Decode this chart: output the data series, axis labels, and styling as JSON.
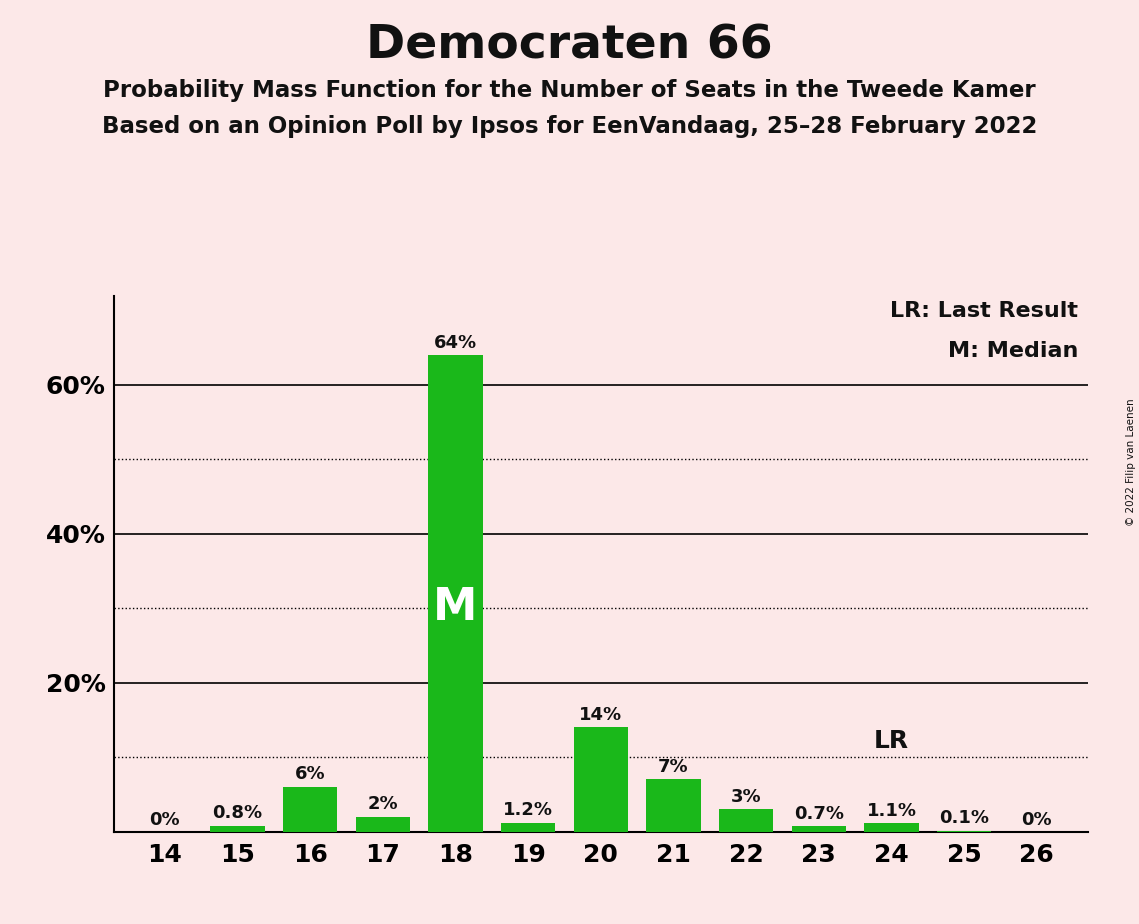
{
  "title": "Democraten 66",
  "subtitle1": "Probability Mass Function for the Number of Seats in the Tweede Kamer",
  "subtitle2": "Based on an Opinion Poll by Ipsos for EenVandaag, 25–28 February 2022",
  "copyright": "© 2022 Filip van Laenen",
  "legend_lr": "LR: Last Result",
  "legend_m": "M: Median",
  "seats": [
    14,
    15,
    16,
    17,
    18,
    19,
    20,
    21,
    22,
    23,
    24,
    25,
    26
  ],
  "probabilities": [
    0.0,
    0.8,
    6.0,
    2.0,
    64.0,
    1.2,
    14.0,
    7.0,
    3.0,
    0.7,
    1.1,
    0.1,
    0.0
  ],
  "labels": [
    "0%",
    "0.8%",
    "6%",
    "2%",
    "64%",
    "1.2%",
    "14%",
    "7%",
    "3%",
    "0.7%",
    "1.1%",
    "0.1%",
    "0%"
  ],
  "bar_color": "#1ab81a",
  "median_seat": 18,
  "lr_seat": 24,
  "background_color": "#fce8e8",
  "major_yticks": [
    20,
    40,
    60
  ],
  "dotted_yticks": [
    10,
    30,
    50
  ],
  "ylim": [
    0,
    72
  ]
}
